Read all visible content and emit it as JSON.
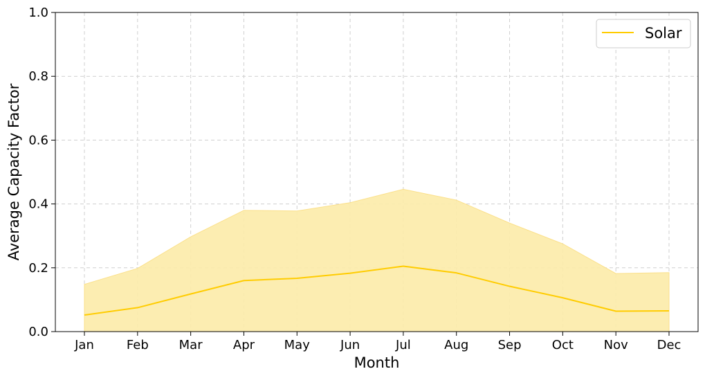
{
  "chart_data": {
    "type": "line",
    "categories": [
      "Jan",
      "Feb",
      "Mar",
      "Apr",
      "May",
      "Jun",
      "Jul",
      "Aug",
      "Sep",
      "Oct",
      "Nov",
      "Dec"
    ],
    "series": [
      {
        "name": "Solar",
        "values": [
          0.052,
          0.075,
          0.118,
          0.16,
          0.167,
          0.183,
          0.205,
          0.184,
          0.142,
          0.106,
          0.064,
          0.065
        ],
        "band_lower": [
          0,
          0,
          0,
          0,
          0,
          0,
          0,
          0,
          0,
          0,
          0,
          0
        ],
        "band_upper": [
          0.148,
          0.198,
          0.297,
          0.38,
          0.378,
          0.404,
          0.446,
          0.412,
          0.34,
          0.275,
          0.182,
          0.185
        ],
        "color": "#FFCC00",
        "band_color": "#FCEBA9"
      }
    ],
    "title": "",
    "xlabel": "Month",
    "ylabel": "Average Capacity Factor",
    "ylim": [
      0,
      1.0
    ],
    "yticks": [
      "0.0",
      "0.2",
      "0.4",
      "0.6",
      "0.8",
      "1.0"
    ],
    "grid": true,
    "legend_position": "top-right"
  }
}
